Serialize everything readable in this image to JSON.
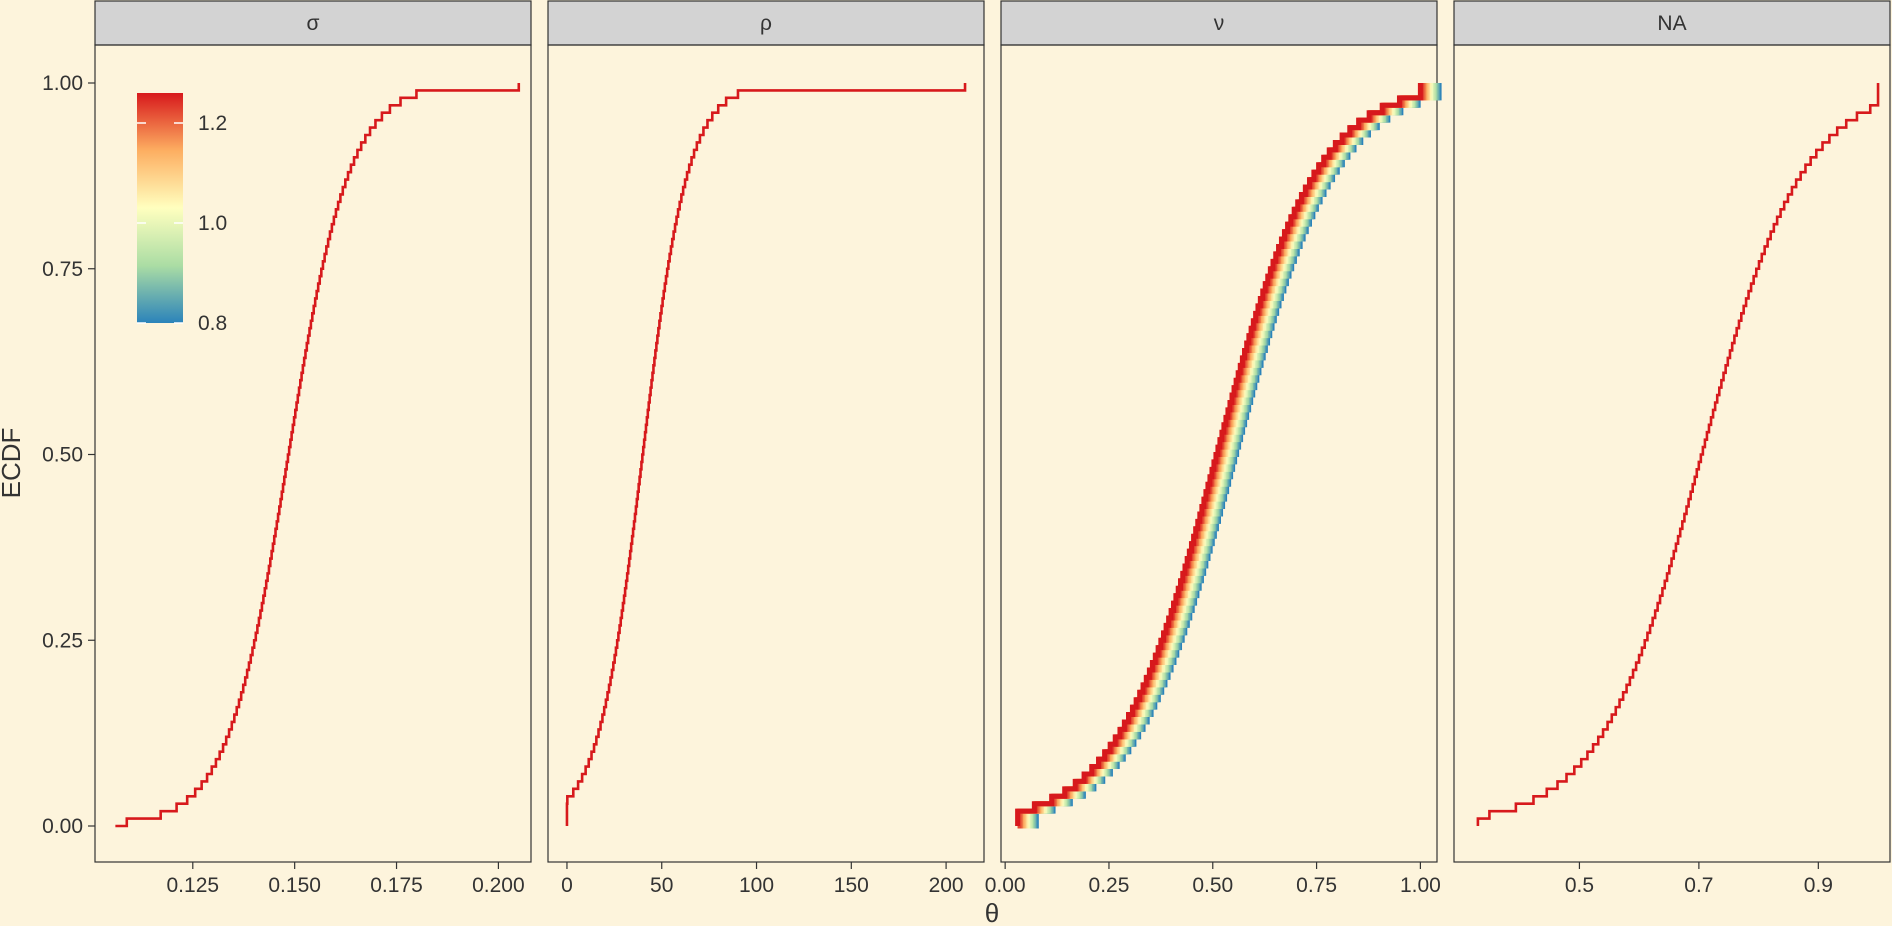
{
  "chart_data": {
    "type": "line",
    "subtype": "ecdf-facets",
    "ylabel": "ECDF",
    "xlabel": "θ",
    "ylim": [
      0,
      1
    ],
    "y_ticks": [
      0.0,
      0.25,
      0.5,
      0.75,
      1.0
    ],
    "y_tick_labels": [
      "0.00",
      "0.25",
      "0.50",
      "0.75",
      "1.00"
    ],
    "grid": false,
    "background_color": "#fdf4dc",
    "panel_border_color": "#333333",
    "strip_background": "#d3d3d3",
    "legend": {
      "type": "colorbar",
      "placement": "inside-top-left",
      "palette": "Spectral",
      "range": [
        0.8,
        1.26
      ],
      "ticks": [
        0.8,
        1.0,
        1.2
      ],
      "tick_labels": [
        "0.8",
        "1.0",
        "1.2"
      ],
      "colors": [
        "#2b83ba",
        "#abdda4",
        "#ffffbf",
        "#fdae61",
        "#d7191c"
      ]
    },
    "panels": [
      {
        "strip": "σ",
        "xlim": [
          0.101,
          0.208
        ],
        "x_ticks": [
          0.125,
          0.15,
          0.175,
          0.2
        ],
        "x_tick_labels": [
          "0.125",
          "0.150",
          "0.175",
          "0.200"
        ],
        "median": 0.1485,
        "scale": 0.0075,
        "xmin": 0.106,
        "xmax": 0.205,
        "n_steps": 100,
        "band": false,
        "line_color": "#d7191c"
      },
      {
        "strip": "ρ",
        "xlim": [
          -10,
          220
        ],
        "x_ticks": [
          0,
          50,
          100,
          150,
          200
        ],
        "x_tick_labels": [
          "0",
          "50",
          "100",
          "150",
          "200"
        ],
        "median": 40,
        "scale": 12,
        "xmin": 0,
        "xmax": 210,
        "n_steps": 100,
        "band": false,
        "line_color": "#d7191c"
      },
      {
        "strip": "ν",
        "xlim": [
          -0.01,
          1.04
        ],
        "x_ticks": [
          0.0,
          0.25,
          0.5,
          0.75,
          1.0
        ],
        "x_tick_labels": [
          "0.00",
          "0.25",
          "0.50",
          "0.75",
          "1.00"
        ],
        "median": 0.51,
        "scale": 0.12,
        "xmin": 0.03,
        "xmax": 1.0,
        "n_steps": 100,
        "band": true,
        "band_width": 0.045,
        "line_color": "#d7191c"
      },
      {
        "strip": "NA",
        "xlim": [
          0.29,
          1.02
        ],
        "x_ticks": [
          0.5,
          0.7,
          0.9
        ],
        "x_tick_labels": [
          "0.5",
          "0.7",
          "0.9"
        ],
        "median": 0.705,
        "scale": 0.085,
        "xmin": 0.33,
        "xmax": 1.0,
        "n_steps": 100,
        "band": false,
        "line_color": "#d7191c"
      }
    ]
  }
}
